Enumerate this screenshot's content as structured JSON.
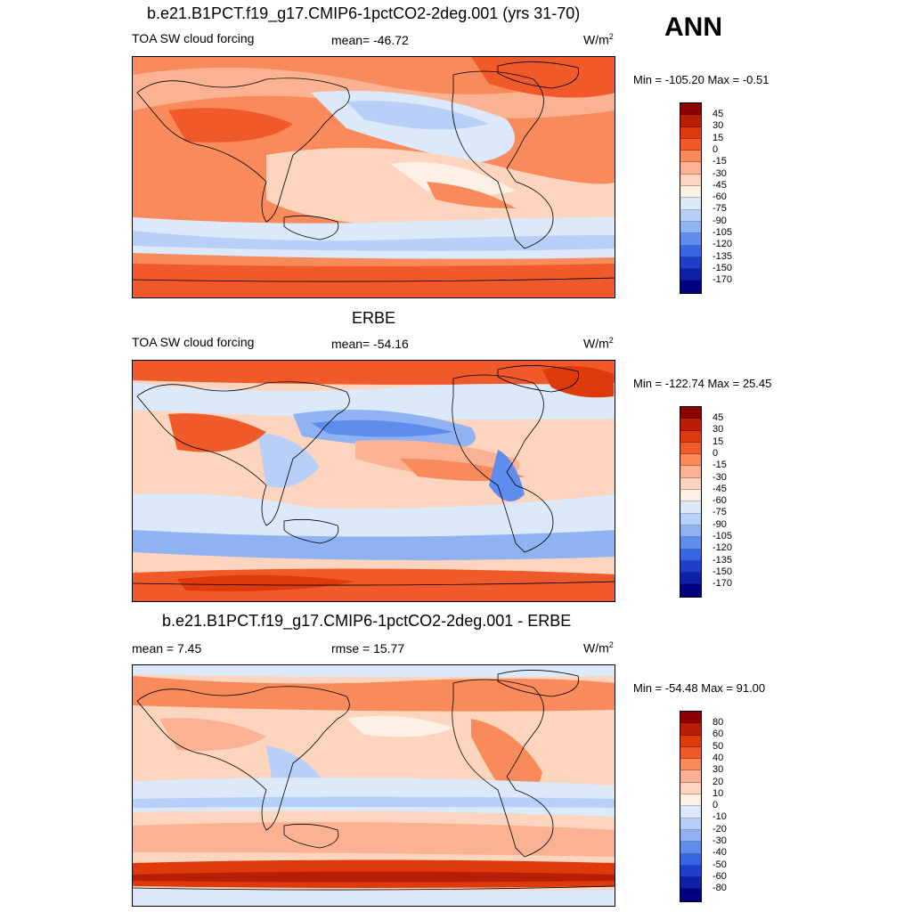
{
  "season": "ANN",
  "panels": [
    {
      "title": "b.e21.B1PCT.f19_g17.CMIP6-1pctCO2-2deg.001 (yrs 31-70)",
      "left_label": "TOA SW cloud forcing",
      "mid_label": "mean= -46.72",
      "units": "W/m",
      "units_sup": "2",
      "minmax": "Min = -105.20 Max =  -0.51",
      "colorbar": {
        "labels": [
          "45",
          "30",
          "15",
          "0",
          "-15",
          "-30",
          "-45",
          "-60",
          "-75",
          "-90",
          "-105",
          "-120",
          "-135",
          "-150",
          "-170"
        ],
        "colors": [
          "#8b0000",
          "#b81d06",
          "#de3a0b",
          "#f05a2a",
          "#f88a5c",
          "#fbb293",
          "#fdd5be",
          "#fdf1e6",
          "#dbe9fb",
          "#b8d0f8",
          "#8fb2f2",
          "#5f8ded",
          "#3765e3",
          "#1d3fcc",
          "#0e1fa8",
          "#00007f"
        ]
      }
    },
    {
      "title": "ERBE",
      "left_label": "TOA SW cloud forcing",
      "mid_label": "mean= -54.16",
      "units": "W/m",
      "units_sup": "2",
      "minmax": "Min = -122.74 Max =  25.45",
      "colorbar": {
        "labels": [
          "45",
          "30",
          "15",
          "0",
          "-15",
          "-30",
          "-45",
          "-60",
          "-75",
          "-90",
          "-105",
          "-120",
          "-135",
          "-150",
          "-170"
        ],
        "colors": [
          "#8b0000",
          "#b81d06",
          "#de3a0b",
          "#f05a2a",
          "#f88a5c",
          "#fbb293",
          "#fdd5be",
          "#fdf1e6",
          "#dbe9fb",
          "#b8d0f8",
          "#8fb2f2",
          "#5f8ded",
          "#3765e3",
          "#1d3fcc",
          "#0e1fa8",
          "#00007f"
        ]
      }
    },
    {
      "title": "b.e21.B1PCT.f19_g17.CMIP6-1pctCO2-2deg.001 - ERBE",
      "left_label": "mean =   7.45",
      "mid_label": "rmse =  15.77",
      "units": "W/m",
      "units_sup": "2",
      "minmax": "Min = -54.48 Max =  91.00",
      "colorbar": {
        "labels": [
          "80",
          "60",
          "50",
          "40",
          "30",
          "20",
          "10",
          "0",
          "-10",
          "-20",
          "-30",
          "-40",
          "-50",
          "-60",
          "-80"
        ],
        "colors": [
          "#8b0000",
          "#b81d06",
          "#de3a0b",
          "#f05a2a",
          "#f88a5c",
          "#fbb293",
          "#fdd5be",
          "#fdf1e6",
          "#dbe9fb",
          "#b8d0f8",
          "#8fb2f2",
          "#5f8ded",
          "#3765e3",
          "#1d3fcc",
          "#0e1fa8",
          "#00007f"
        ]
      }
    }
  ]
}
